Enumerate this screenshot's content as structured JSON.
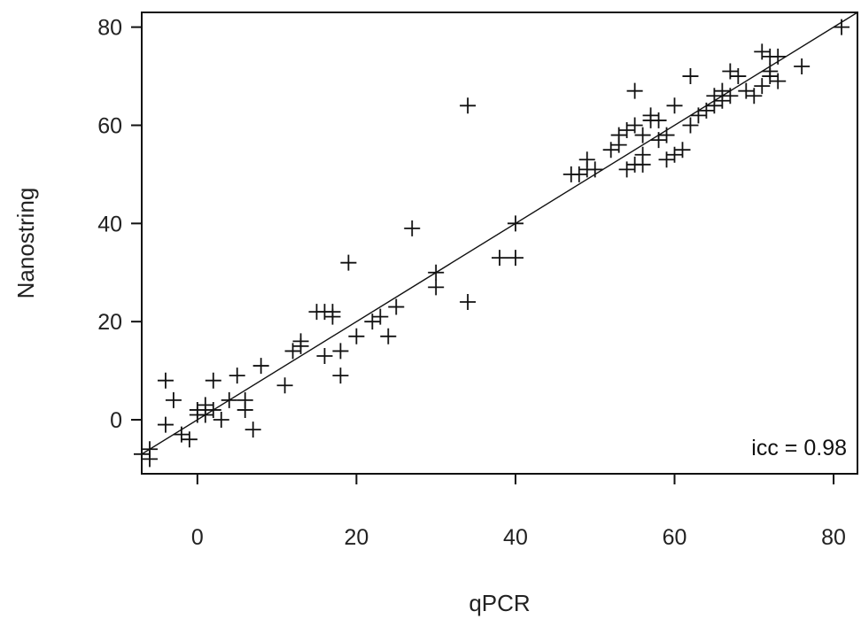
{
  "chart_data": {
    "type": "scatter",
    "xlabel": "qPCR",
    "ylabel": "Nanostring",
    "xlim": [
      -7,
      83
    ],
    "ylim": [
      -11,
      83
    ],
    "xticks": [
      0,
      20,
      40,
      60,
      80
    ],
    "yticks": [
      0,
      20,
      40,
      60,
      80
    ],
    "grid": false,
    "marker": "plus",
    "annotation": "icc = 0.98",
    "annotation_position": "bottom-right",
    "reference_line": {
      "slope": 1,
      "intercept": 0
    },
    "points": [
      [
        -7,
        -7
      ],
      [
        -6,
        -8
      ],
      [
        -6,
        -6
      ],
      [
        -4,
        -1
      ],
      [
        -4,
        8
      ],
      [
        -3,
        4
      ],
      [
        -2,
        -3
      ],
      [
        -1,
        -4
      ],
      [
        0,
        1
      ],
      [
        0,
        2
      ],
      [
        1,
        3
      ],
      [
        1,
        1
      ],
      [
        2,
        8
      ],
      [
        2,
        2
      ],
      [
        3,
        0
      ],
      [
        4,
        4
      ],
      [
        5,
        9
      ],
      [
        6,
        2
      ],
      [
        6,
        4
      ],
      [
        7,
        -2
      ],
      [
        8,
        11
      ],
      [
        11,
        7
      ],
      [
        12,
        14
      ],
      [
        13,
        15
      ],
      [
        13,
        16
      ],
      [
        15,
        22
      ],
      [
        16,
        13
      ],
      [
        16,
        22
      ],
      [
        17,
        22
      ],
      [
        17,
        21
      ],
      [
        18,
        9
      ],
      [
        18,
        14
      ],
      [
        19,
        32
      ],
      [
        20,
        17
      ],
      [
        22,
        20
      ],
      [
        23,
        21
      ],
      [
        24,
        17
      ],
      [
        25,
        23
      ],
      [
        27,
        39
      ],
      [
        30,
        27
      ],
      [
        30,
        30
      ],
      [
        34,
        64
      ],
      [
        34,
        24
      ],
      [
        38,
        33
      ],
      [
        40,
        40
      ],
      [
        40,
        33
      ],
      [
        47,
        50
      ],
      [
        48,
        50
      ],
      [
        49,
        51
      ],
      [
        49,
        53
      ],
      [
        50,
        51
      ],
      [
        52,
        55
      ],
      [
        53,
        56
      ],
      [
        53,
        58
      ],
      [
        54,
        51
      ],
      [
        54,
        59
      ],
      [
        55,
        52
      ],
      [
        55,
        60
      ],
      [
        55,
        67
      ],
      [
        56,
        54
      ],
      [
        56,
        52
      ],
      [
        56,
        58
      ],
      [
        57,
        61
      ],
      [
        57,
        62
      ],
      [
        58,
        61
      ],
      [
        58,
        57
      ],
      [
        59,
        53
      ],
      [
        59,
        58
      ],
      [
        60,
        64
      ],
      [
        60,
        54
      ],
      [
        61,
        55
      ],
      [
        62,
        60
      ],
      [
        62,
        70
      ],
      [
        63,
        62
      ],
      [
        64,
        63
      ],
      [
        65,
        64
      ],
      [
        65,
        66
      ],
      [
        66,
        65
      ],
      [
        66,
        67
      ],
      [
        67,
        66
      ],
      [
        67,
        71
      ],
      [
        68,
        70
      ],
      [
        69,
        67
      ],
      [
        70,
        66
      ],
      [
        71,
        75
      ],
      [
        71,
        68
      ],
      [
        72,
        70
      ],
      [
        72,
        74
      ],
      [
        72,
        71
      ],
      [
        73,
        69
      ],
      [
        73,
        74
      ],
      [
        76,
        72
      ],
      [
        81,
        80
      ]
    ]
  }
}
